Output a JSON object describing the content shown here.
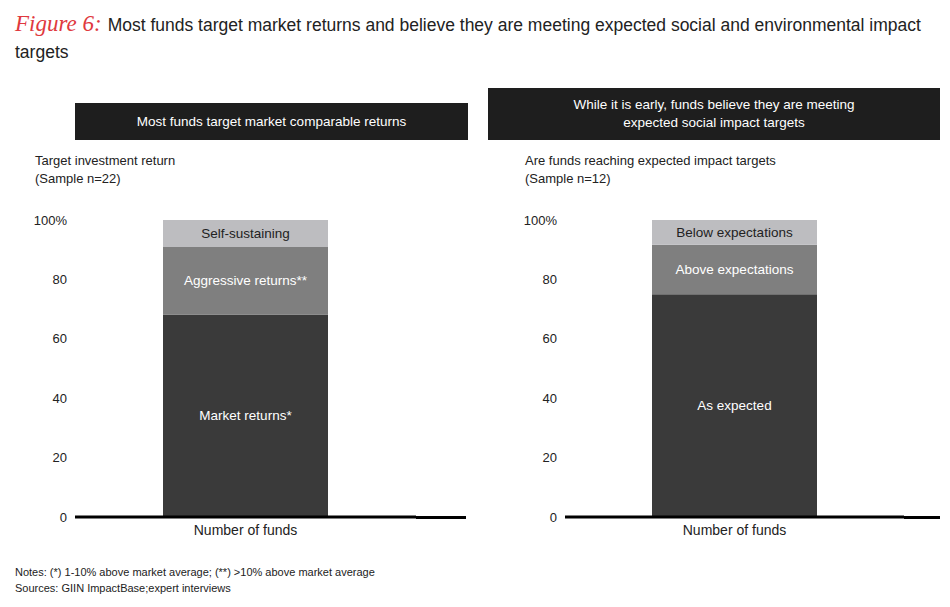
{
  "figure": {
    "label": "Figure 6:",
    "title": "Most funds target market returns and believe they are meeting expected social and environmental impact targets"
  },
  "chart_data": [
    {
      "type": "bar",
      "stacked": true,
      "grid": false,
      "title": "Most funds target market comparable returns",
      "subtitle": [
        "Target investment return",
        "(Sample n=22)"
      ],
      "categories": [
        "Number of funds"
      ],
      "series": [
        {
          "name": "Market returns*",
          "color": "#3a3a3a",
          "values": [
            68.2
          ]
        },
        {
          "name": "Aggressive returns**",
          "color": "#7f7f7f",
          "values": [
            22.7
          ]
        },
        {
          "name": "Self-sustaining",
          "color": "#bdbdc0",
          "values": [
            9.1
          ]
        }
      ],
      "ylim": [
        0,
        100
      ],
      "yticks": [
        0,
        20,
        40,
        60,
        80,
        {
          "value": 100,
          "label": "100%"
        }
      ]
    },
    {
      "type": "bar",
      "stacked": true,
      "grid": false,
      "title": "While it is early, funds believe they are meeting expected social impact targets",
      "subtitle": [
        "Are funds reaching expected impact targets",
        "(Sample n=12)"
      ],
      "categories": [
        "Number of funds"
      ],
      "series": [
        {
          "name": "As expected",
          "color": "#3a3a3a",
          "values": [
            75
          ]
        },
        {
          "name": "Above expectations",
          "color": "#7f7f7f",
          "values": [
            16.7
          ]
        },
        {
          "name": "Below expectations",
          "color": "#bdbdc0",
          "values": [
            8.3
          ]
        }
      ],
      "ylim": [
        0,
        100
      ],
      "yticks": [
        0,
        20,
        40,
        60,
        80,
        {
          "value": 100,
          "label": "100%"
        }
      ]
    }
  ],
  "notes": "Notes: (*) 1-10% above market average; (**) >10% above market average",
  "sources": "Sources: GIIN ImpactBase;expert interviews"
}
